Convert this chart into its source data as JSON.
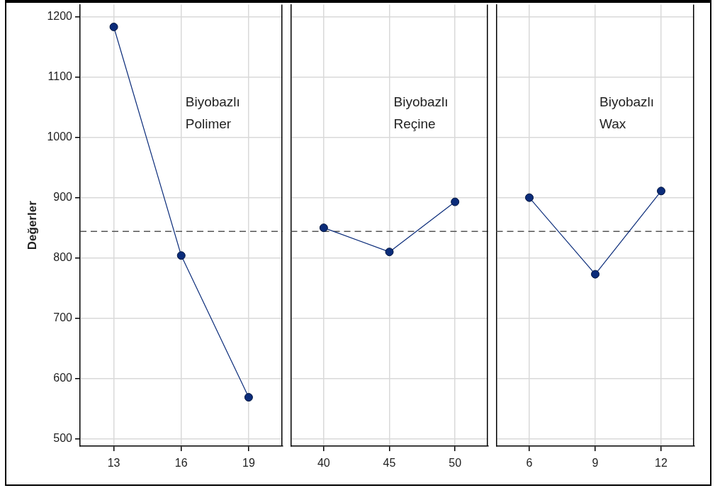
{
  "chart_data": [
    {
      "type": "line",
      "title": "Biyobazlı Polimer",
      "ylabel": "Değerler",
      "categories": [
        "13",
        "16",
        "19"
      ],
      "values": [
        1183,
        804,
        569
      ],
      "color": "#0b2c7a",
      "marker": "circle",
      "line_style": "solid",
      "grid": true,
      "ylim": [
        488,
        1220
      ],
      "yticks": [
        500,
        600,
        700,
        800,
        900,
        1000,
        1100,
        1200
      ],
      "ref_lines": [
        {
          "axis": "y",
          "value": 844,
          "color": "#555555",
          "line_style": "dashed"
        }
      ]
    },
    {
      "type": "line",
      "title": "Biyobazlı Reçine",
      "categories": [
        "40",
        "45",
        "50"
      ],
      "values": [
        850,
        810,
        893
      ],
      "color": "#0b2c7a",
      "marker": "circle",
      "line_style": "solid",
      "grid": true,
      "tick_labels": "x",
      "ylim": [
        488,
        1220
      ],
      "yticks": [
        500,
        600,
        700,
        800,
        900,
        1000,
        1100,
        1200
      ],
      "ref_lines": [
        {
          "axis": "y",
          "value": 844,
          "color": "#555555",
          "line_style": "dashed"
        }
      ]
    },
    {
      "type": "line",
      "title": "Biyobazlı Wax",
      "categories": [
        "6",
        "9",
        "12"
      ],
      "values": [
        900,
        773,
        911
      ],
      "color": "#0b2c7a",
      "marker": "circle",
      "line_style": "solid",
      "grid": true,
      "tick_labels": "x",
      "ylim": [
        488,
        1220
      ],
      "yticks": [
        500,
        600,
        700,
        800,
        900,
        1000,
        1100,
        1200
      ],
      "ref_lines": [
        {
          "axis": "y",
          "value": 844,
          "color": "#555555",
          "line_style": "dashed"
        }
      ]
    }
  ]
}
